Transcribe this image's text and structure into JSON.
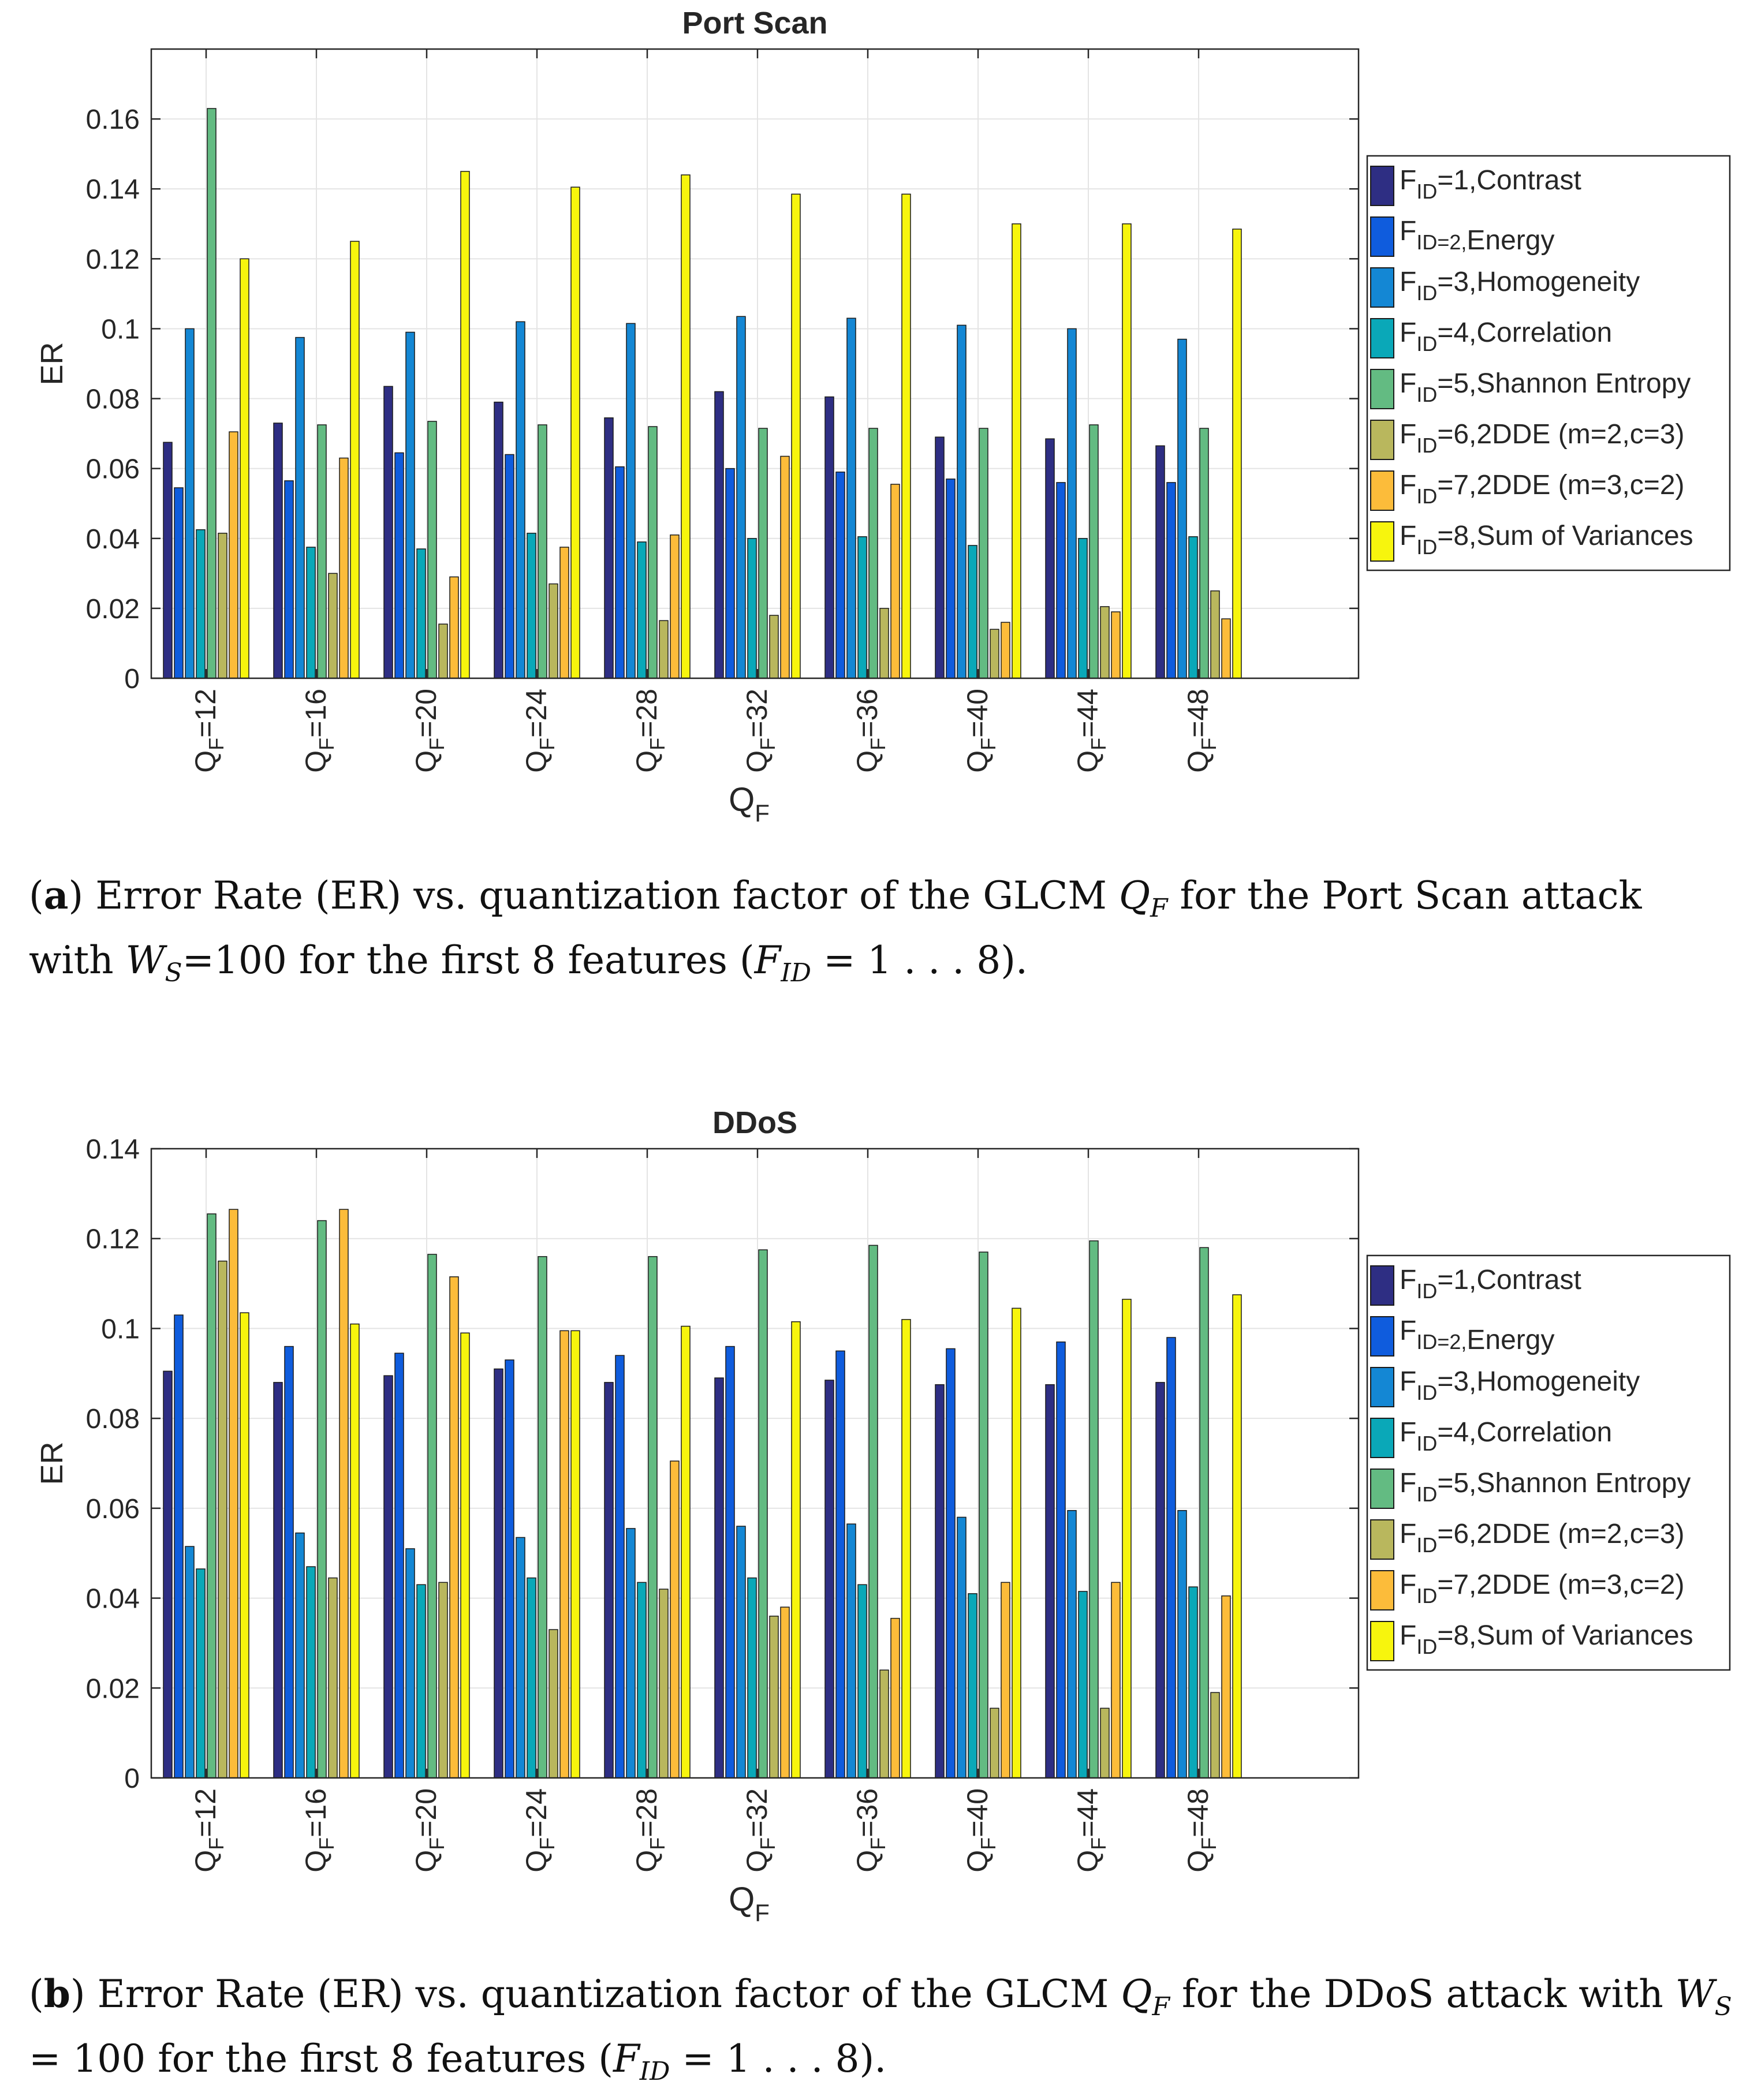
{
  "chart_data": [
    {
      "type": "bar",
      "title": "Port Scan",
      "xlabel": "Q",
      "xlabel_sub": "F",
      "ylabel": "ER",
      "ylim": [
        0,
        0.18
      ],
      "yticks": [
        0,
        0.02,
        0.04,
        0.06,
        0.08,
        0.1,
        0.12,
        0.14,
        0.16
      ],
      "ytick_labels": [
        "0",
        "0.02",
        "0.04",
        "0.06",
        "0.08",
        "0.1",
        "0.12",
        "0.14",
        "0.16"
      ],
      "grid": true,
      "legend_position": "right",
      "categories": [
        "12",
        "16",
        "20",
        "24",
        "28",
        "32",
        "36",
        "40",
        "44",
        "48"
      ],
      "series": [
        {
          "name": "1,Contrast",
          "sep": "=",
          "color": "#2e2e83",
          "values": [
            0.0675,
            0.073,
            0.0835,
            0.079,
            0.0745,
            0.082,
            0.0805,
            0.069,
            0.0685,
            0.0665
          ]
        },
        {
          "name": "Energy",
          "sep": "=2,",
          "color": "#0f5cdd",
          "values": [
            0.0545,
            0.0565,
            0.0645,
            0.064,
            0.0605,
            0.06,
            0.059,
            0.057,
            0.056,
            0.056
          ]
        },
        {
          "name": "3,Homogeneity",
          "sep": "=",
          "color": "#1487d4",
          "values": [
            0.1,
            0.0975,
            0.099,
            0.102,
            0.1015,
            0.1035,
            0.103,
            0.101,
            0.1,
            0.097
          ]
        },
        {
          "name": "4,Correlation",
          "sep": "=",
          "color": "#0aa8b8",
          "values": [
            0.0425,
            0.0375,
            0.037,
            0.0415,
            0.039,
            0.04,
            0.0405,
            0.038,
            0.04,
            0.0405
          ]
        },
        {
          "name": "5,Shannon Entropy",
          "sep": "=",
          "color": "#63bb82",
          "values": [
            0.163,
            0.0725,
            0.0735,
            0.0725,
            0.072,
            0.0715,
            0.0715,
            0.0715,
            0.0725,
            0.0715
          ]
        },
        {
          "name": "6,2DDE (m=2,c=3)",
          "sep": "=",
          "color": "#b9b75d",
          "values": [
            0.0415,
            0.03,
            0.0155,
            0.027,
            0.0165,
            0.018,
            0.02,
            0.014,
            0.0205,
            0.025
          ]
        },
        {
          "name": "7,2DDE (m=3,c=2)",
          "sep": "=",
          "color": "#fcbc3a",
          "values": [
            0.0705,
            0.063,
            0.029,
            0.0375,
            0.041,
            0.0635,
            0.0555,
            0.016,
            0.019,
            0.017
          ]
        },
        {
          "name": "8,Sum of Variances",
          "sep": "=",
          "color": "#f7f50d",
          "values": [
            0.12,
            0.125,
            0.145,
            0.1405,
            0.144,
            0.1385,
            0.1385,
            0.13,
            0.13,
            0.1285
          ]
        }
      ]
    },
    {
      "type": "bar",
      "title": "DDoS",
      "xlabel": "Q",
      "xlabel_sub": "F",
      "ylabel": "ER",
      "ylim": [
        0,
        0.14
      ],
      "yticks": [
        0,
        0.02,
        0.04,
        0.06,
        0.08,
        0.1,
        0.12,
        0.14
      ],
      "ytick_labels": [
        "0",
        "0.02",
        "0.04",
        "0.06",
        "0.08",
        "0.1",
        "0.12",
        "0.14"
      ],
      "grid": true,
      "legend_position": "right",
      "categories": [
        "12",
        "16",
        "20",
        "24",
        "28",
        "32",
        "36",
        "40",
        "44",
        "48"
      ],
      "series": [
        {
          "name": "1,Contrast",
          "sep": "=",
          "color": "#2e2e83",
          "values": [
            0.0905,
            0.088,
            0.0895,
            0.091,
            0.088,
            0.089,
            0.0885,
            0.0875,
            0.0875,
            0.088
          ]
        },
        {
          "name": "Energy",
          "sep": "=2,",
          "color": "#0f5cdd",
          "values": [
            0.103,
            0.096,
            0.0945,
            0.093,
            0.094,
            0.096,
            0.095,
            0.0955,
            0.097,
            0.098
          ]
        },
        {
          "name": "3,Homogeneity",
          "sep": "=",
          "color": "#1487d4",
          "values": [
            0.0515,
            0.0545,
            0.051,
            0.0535,
            0.0555,
            0.056,
            0.0565,
            0.058,
            0.0595,
            0.0595
          ]
        },
        {
          "name": "4,Correlation",
          "sep": "=",
          "color": "#0aa8b8",
          "values": [
            0.0465,
            0.047,
            0.043,
            0.0445,
            0.0435,
            0.0445,
            0.043,
            0.041,
            0.0415,
            0.0425
          ]
        },
        {
          "name": "5,Shannon Entropy",
          "sep": "=",
          "color": "#63bb82",
          "values": [
            0.1255,
            0.124,
            0.1165,
            0.116,
            0.116,
            0.1175,
            0.1185,
            0.117,
            0.1195,
            0.118
          ]
        },
        {
          "name": "6,2DDE (m=2,c=3)",
          "sep": "=",
          "color": "#b9b75d",
          "values": [
            0.115,
            0.0445,
            0.0435,
            0.033,
            0.042,
            0.036,
            0.024,
            0.0155,
            0.0155,
            0.019
          ]
        },
        {
          "name": "7,2DDE (m=3,c=2)",
          "sep": "=",
          "color": "#fcbc3a",
          "values": [
            0.1265,
            0.1265,
            0.1115,
            0.0995,
            0.0705,
            0.038,
            0.0355,
            0.0435,
            0.0435,
            0.0405
          ]
        },
        {
          "name": "8,Sum of Variances",
          "sep": "=",
          "color": "#f7f50d",
          "values": [
            0.1035,
            0.101,
            0.099,
            0.0995,
            0.1005,
            0.1015,
            0.102,
            0.1045,
            0.1065,
            0.1075
          ]
        }
      ]
    }
  ],
  "legend_prefix": "F",
  "legend_prefix_sub": "ID",
  "category_prefix": "Q",
  "category_prefix_sub": "F",
  "category_sep": "=",
  "captions": [
    {
      "label": "a",
      "text1": " Error Rate (ER) vs. quantization factor of the GLCM ",
      "sym": "Q",
      "sym_sub": "F",
      "text2": " for the Port Scan attack with ",
      "sym2": "W",
      "sym2_sub": "S",
      "text3": "=100 for the first 8 features (",
      "sym3": "F",
      "sym3_sub": "ID",
      "text4": " = 1 . . . 8)."
    },
    {
      "label": "b",
      "text1": " Error Rate (ER) vs. quantization factor of the GLCM ",
      "sym": "Q",
      "sym_sub": "F",
      "text2": " for the DDoS attack with ",
      "sym2": "W",
      "sym2_sub": "S",
      "text3": " = 100 for the first 8 features (",
      "sym3": "F",
      "sym3_sub": "ID",
      "text4": " = 1 . . . 8)."
    }
  ]
}
